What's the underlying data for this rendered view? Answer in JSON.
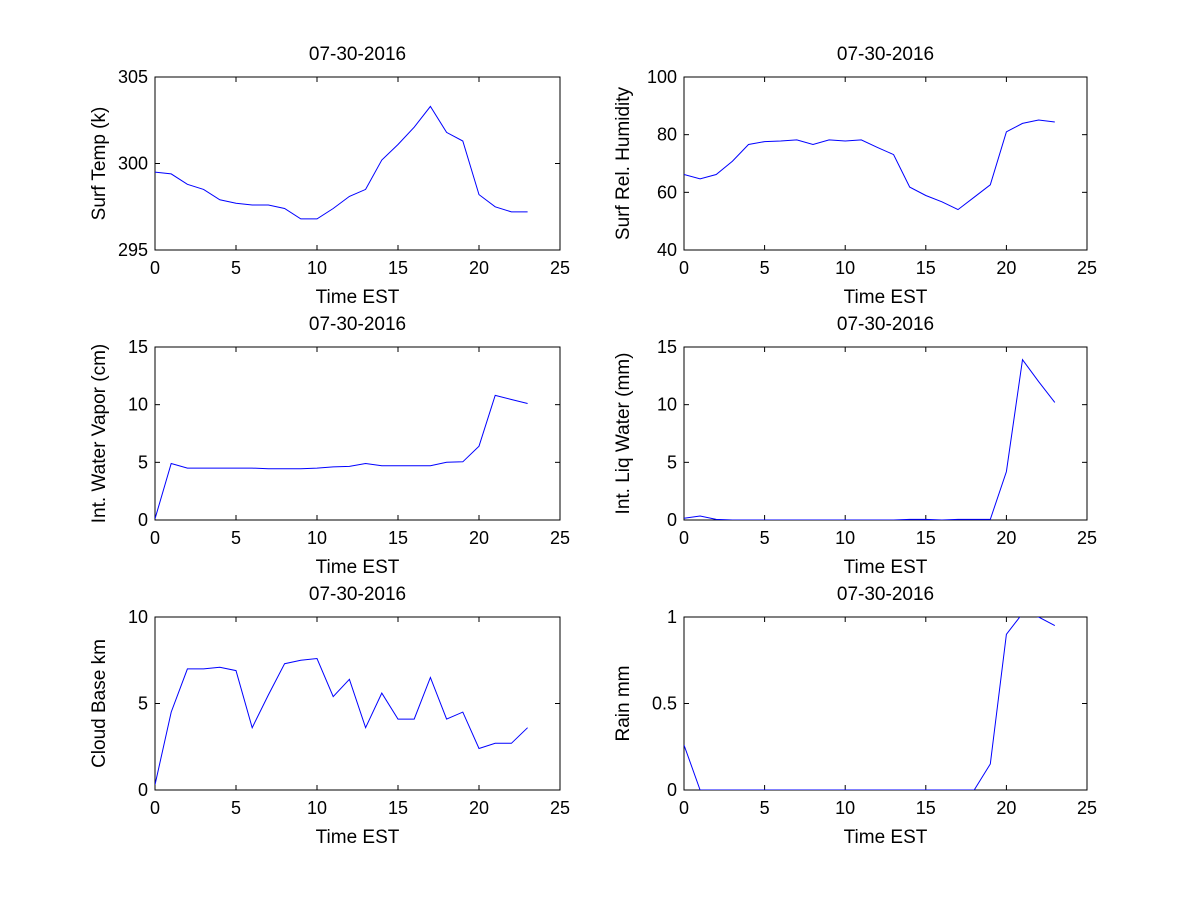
{
  "colors": {
    "line": "#0000ff",
    "axes": "#000000",
    "background": "#ffffff"
  },
  "chart_data": [
    {
      "type": "line",
      "title": "07-30-2016",
      "xlabel": "Time EST",
      "ylabel": "Surf Temp (k)",
      "xlim": [
        0,
        25
      ],
      "ylim": [
        295,
        305
      ],
      "grid": false,
      "xticks": [
        "0",
        "5",
        "10",
        "15",
        "20",
        "25"
      ],
      "yticks": [
        "295",
        "300",
        "305"
      ],
      "x": [
        0,
        1,
        2,
        3,
        4,
        5,
        6,
        7,
        8,
        9,
        10,
        11,
        12,
        13,
        14,
        15,
        16,
        17,
        18,
        19,
        20,
        21,
        22,
        23
      ],
      "y": [
        299.5,
        299.4,
        298.8,
        298.5,
        297.9,
        297.7,
        297.6,
        297.6,
        297.4,
        296.8,
        296.8,
        297.4,
        298.1,
        298.5,
        300.2,
        301.1,
        302.1,
        303.3,
        301.8,
        301.3,
        298.2,
        297.5,
        297.2,
        297.2
      ]
    },
    {
      "type": "line",
      "title": "07-30-2016",
      "xlabel": "Time EST",
      "ylabel": "Surf Rel. Humidity",
      "xlim": [
        0,
        25
      ],
      "ylim": [
        40,
        100
      ],
      "grid": false,
      "xticks": [
        "0",
        "5",
        "10",
        "15",
        "20",
        "25"
      ],
      "yticks": [
        "40",
        "60",
        "80",
        "100"
      ],
      "x": [
        0,
        1,
        2,
        3,
        4,
        5,
        6,
        7,
        8,
        9,
        10,
        11,
        12,
        13,
        14,
        15,
        16,
        17,
        18,
        19,
        20,
        21,
        22,
        23
      ],
      "y": [
        66.2,
        64.7,
        66.2,
        70.8,
        76.6,
        77.6,
        77.8,
        78.2,
        76.6,
        78.2,
        77.8,
        78.2,
        75.6,
        73.1,
        61.8,
        58.9,
        56.7,
        54.0,
        58.3,
        62.6,
        81.0,
        83.9,
        85.1,
        84.4
      ]
    },
    {
      "type": "line",
      "title": "07-30-2016",
      "xlabel": "Time EST",
      "ylabel": "Int. Water Vapor (cm)",
      "xlim": [
        0,
        25
      ],
      "ylim": [
        0,
        15
      ],
      "grid": false,
      "xticks": [
        "0",
        "5",
        "10",
        "15",
        "20",
        "25"
      ],
      "yticks": [
        "0",
        "5",
        "10",
        "15"
      ],
      "x": [
        0,
        1,
        2,
        3,
        4,
        5,
        6,
        7,
        8,
        9,
        10,
        11,
        12,
        13,
        14,
        15,
        16,
        17,
        18,
        19,
        20,
        21,
        22,
        23
      ],
      "y": [
        0.1,
        4.9,
        4.5,
        4.5,
        4.5,
        4.5,
        4.5,
        4.45,
        4.45,
        4.45,
        4.5,
        4.6,
        4.65,
        4.9,
        4.7,
        4.7,
        4.7,
        4.7,
        5.0,
        5.05,
        6.4,
        10.8,
        10.45,
        10.1
      ]
    },
    {
      "type": "line",
      "title": "07-30-2016",
      "xlabel": "Time EST",
      "ylabel": "Int. Liq Water (mm)",
      "xlim": [
        0,
        25
      ],
      "ylim": [
        0,
        15
      ],
      "grid": false,
      "xticks": [
        "0",
        "5",
        "10",
        "15",
        "20",
        "25"
      ],
      "yticks": [
        "0",
        "5",
        "10",
        "15"
      ],
      "x": [
        0,
        1,
        2,
        3,
        4,
        5,
        6,
        7,
        8,
        9,
        10,
        11,
        12,
        13,
        14,
        15,
        16,
        17,
        18,
        19,
        20,
        21,
        22,
        23
      ],
      "y": [
        0.15,
        0.35,
        0.05,
        0,
        0,
        0,
        0,
        0,
        0,
        0,
        0,
        0,
        0,
        0,
        0.05,
        0.05,
        0,
        0.05,
        0.05,
        0.05,
        4.2,
        13.9,
        12.0,
        10.2
      ]
    },
    {
      "type": "line",
      "title": "07-30-2016",
      "xlabel": "Time EST",
      "ylabel": "Cloud Base km",
      "xlim": [
        0,
        25
      ],
      "ylim": [
        0,
        10
      ],
      "grid": false,
      "xticks": [
        "0",
        "5",
        "10",
        "15",
        "20",
        "25"
      ],
      "yticks": [
        "0",
        "5",
        "10"
      ],
      "x": [
        0,
        1,
        2,
        3,
        4,
        5,
        6,
        7,
        8,
        9,
        10,
        11,
        12,
        13,
        14,
        15,
        16,
        17,
        18,
        19,
        20,
        21,
        22,
        23
      ],
      "y": [
        0.3,
        4.5,
        7.0,
        7.0,
        7.1,
        6.9,
        3.6,
        5.5,
        7.3,
        7.5,
        7.6,
        5.4,
        6.4,
        3.6,
        5.6,
        4.1,
        4.1,
        6.5,
        4.1,
        4.5,
        2.4,
        2.7,
        2.7,
        3.6
      ]
    },
    {
      "type": "line",
      "title": "07-30-2016",
      "xlabel": "Time EST",
      "ylabel": "Rain mm",
      "xlim": [
        0,
        25
      ],
      "ylim": [
        0,
        1
      ],
      "grid": false,
      "xticks": [
        "0",
        "5",
        "10",
        "15",
        "20",
        "25"
      ],
      "yticks": [
        "0",
        "0.5",
        "1"
      ],
      "x": [
        0,
        1,
        2,
        3,
        4,
        5,
        6,
        7,
        8,
        9,
        10,
        11,
        12,
        13,
        14,
        15,
        16,
        17,
        18,
        19,
        20,
        21,
        22,
        23
      ],
      "y": [
        0.26,
        0,
        0,
        0,
        0,
        0,
        0,
        0,
        0,
        0,
        0,
        0,
        0,
        0,
        0,
        0,
        0,
        0,
        0,
        0.15,
        0.9,
        1.02,
        1.0,
        0.95
      ]
    }
  ]
}
